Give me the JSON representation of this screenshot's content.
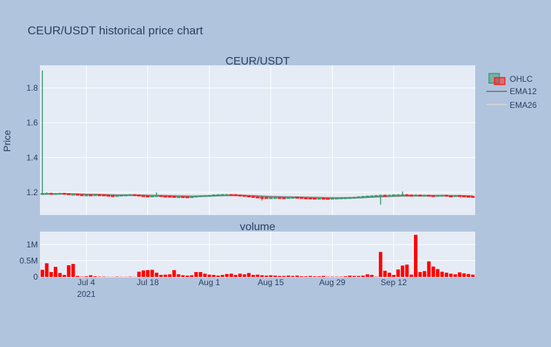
{
  "title": "CEUR/USDT historical price chart",
  "colors": {
    "background": "#b0c4de",
    "plot_bg": "#e5ecf6",
    "increasing": "#3d9970",
    "decreasing": "#ff1a1a",
    "ema12": "#808080",
    "ema26": "#d3d3d3",
    "volume": "#ff0000",
    "text": "#2a3f5f"
  },
  "chart_data": [
    {
      "type": "candlestick",
      "title": "CEUR/USDT",
      "ylabel": "Price",
      "ylim": [
        1.07,
        1.93
      ],
      "y_ticks": [
        1.2,
        1.4,
        1.6,
        1.8
      ],
      "y_tick_labels": [
        "1.2",
        "1.4",
        "1.6",
        "1.8"
      ],
      "x_start": "2021-06-24",
      "x_ticks": [
        "2021-07-04",
        "2021-07-18",
        "2021-08-01",
        "2021-08-15",
        "2021-08-29",
        "2021-09-12"
      ],
      "x_tick_labels": [
        "Jul 4\n2021",
        "Jul 18",
        "Aug 1",
        "Aug 15",
        "Aug 29",
        "Sep 12"
      ],
      "grid": true,
      "legend": {
        "position": "right",
        "entries": [
          "OHLC",
          "EMA12",
          "EMA26"
        ]
      },
      "series": [
        {
          "name": "OHLC",
          "kind": "ohlc",
          "close": [
            1.195,
            1.195,
            1.193,
            1.194,
            1.195,
            1.193,
            1.19,
            1.19,
            1.187,
            1.186,
            1.186,
            1.185,
            1.187,
            1.186,
            1.184,
            1.182,
            1.18,
            1.183,
            1.185,
            1.186,
            1.187,
            1.185,
            1.182,
            1.18,
            1.179,
            1.18,
            1.182,
            1.179,
            1.178,
            1.177,
            1.176,
            1.176,
            1.175,
            1.174,
            1.176,
            1.179,
            1.181,
            1.182,
            1.183,
            1.186,
            1.187,
            1.188,
            1.188,
            1.187,
            1.185,
            1.183,
            1.18,
            1.177,
            1.174,
            1.172,
            1.171,
            1.17,
            1.17,
            1.171,
            1.17,
            1.169,
            1.171,
            1.172,
            1.171,
            1.169,
            1.168,
            1.167,
            1.166,
            1.167,
            1.166,
            1.165,
            1.167,
            1.168,
            1.169,
            1.17,
            1.171,
            1.172,
            1.175,
            1.177,
            1.179,
            1.18,
            1.182,
            1.184,
            1.183,
            1.184,
            1.186,
            1.186,
            1.187,
            1.185,
            1.184,
            1.185,
            1.183,
            1.184,
            1.182,
            1.181,
            1.183,
            1.184,
            1.18,
            1.178,
            1.182,
            1.18,
            1.178,
            1.177,
            1.175
          ],
          "open": [
            1.19,
            1.195,
            1.195,
            1.193,
            1.194,
            1.195,
            1.193,
            1.19,
            1.19,
            1.187,
            1.186,
            1.186,
            1.185,
            1.187,
            1.186,
            1.184,
            1.182,
            1.18,
            1.183,
            1.185,
            1.186,
            1.187,
            1.185,
            1.182,
            1.18,
            1.179,
            1.18,
            1.182,
            1.179,
            1.178,
            1.177,
            1.176,
            1.176,
            1.175,
            1.174,
            1.176,
            1.179,
            1.181,
            1.182,
            1.183,
            1.186,
            1.187,
            1.188,
            1.188,
            1.187,
            1.185,
            1.183,
            1.18,
            1.177,
            1.174,
            1.172,
            1.171,
            1.17,
            1.17,
            1.171,
            1.17,
            1.169,
            1.171,
            1.172,
            1.171,
            1.169,
            1.168,
            1.167,
            1.166,
            1.167,
            1.166,
            1.165,
            1.167,
            1.168,
            1.169,
            1.17,
            1.171,
            1.172,
            1.175,
            1.177,
            1.179,
            1.18,
            1.182,
            1.184,
            1.183,
            1.184,
            1.186,
            1.186,
            1.187,
            1.185,
            1.184,
            1.185,
            1.183,
            1.184,
            1.182,
            1.181,
            1.183,
            1.184,
            1.18,
            1.178,
            1.182,
            1.18,
            1.178,
            1.177
          ],
          "high": [
            1.9,
            1.2,
            1.198,
            1.197,
            1.198,
            1.198,
            1.196,
            1.193,
            1.193,
            1.19,
            1.189,
            1.189,
            1.19,
            1.19,
            1.189,
            1.187,
            1.185,
            1.186,
            1.188,
            1.189,
            1.19,
            1.19,
            1.188,
            1.185,
            1.183,
            1.183,
            1.2,
            1.185,
            1.182,
            1.181,
            1.18,
            1.179,
            1.179,
            1.178,
            1.179,
            1.182,
            1.184,
            1.185,
            1.186,
            1.189,
            1.19,
            1.191,
            1.191,
            1.19,
            1.19,
            1.188,
            1.186,
            1.183,
            1.18,
            1.177,
            1.175,
            1.174,
            1.173,
            1.174,
            1.174,
            1.173,
            1.174,
            1.175,
            1.175,
            1.174,
            1.172,
            1.171,
            1.17,
            1.17,
            1.17,
            1.169,
            1.17,
            1.171,
            1.172,
            1.173,
            1.174,
            1.175,
            1.178,
            1.18,
            1.182,
            1.183,
            1.185,
            1.187,
            1.187,
            1.187,
            1.19,
            1.19,
            1.205,
            1.19,
            1.188,
            1.188,
            1.187,
            1.187,
            1.186,
            1.185,
            1.186,
            1.187,
            1.187,
            1.183,
            1.185,
            1.185,
            1.183,
            1.181,
            1.18
          ],
          "low": [
            1.185,
            1.19,
            1.19,
            1.19,
            1.191,
            1.19,
            1.188,
            1.187,
            1.185,
            1.183,
            1.183,
            1.182,
            1.182,
            1.183,
            1.181,
            1.179,
            1.177,
            1.177,
            1.18,
            1.182,
            1.183,
            1.182,
            1.179,
            1.177,
            1.176,
            1.176,
            1.177,
            1.176,
            1.175,
            1.174,
            1.173,
            1.173,
            1.172,
            1.171,
            1.171,
            1.173,
            1.176,
            1.178,
            1.179,
            1.18,
            1.183,
            1.184,
            1.185,
            1.184,
            1.182,
            1.18,
            1.177,
            1.174,
            1.171,
            1.169,
            1.155,
            1.167,
            1.167,
            1.167,
            1.167,
            1.166,
            1.166,
            1.168,
            1.168,
            1.166,
            1.165,
            1.164,
            1.163,
            1.163,
            1.163,
            1.162,
            1.162,
            1.164,
            1.165,
            1.166,
            1.167,
            1.168,
            1.169,
            1.172,
            1.174,
            1.176,
            1.177,
            1.13,
            1.18,
            1.18,
            1.181,
            1.183,
            1.183,
            1.182,
            1.181,
            1.181,
            1.18,
            1.18,
            1.179,
            1.178,
            1.178,
            1.18,
            1.177,
            1.175,
            1.175,
            1.177,
            1.175,
            1.174,
            1.172
          ]
        },
        {
          "name": "EMA12",
          "kind": "line",
          "values": [
            1.19,
            1.1908,
            1.1914,
            1.1917,
            1.1922,
            1.1923,
            1.1919,
            1.1915,
            1.1906,
            1.1897,
            1.1889,
            1.1881,
            1.1878,
            1.1874,
            1.1867,
            1.1857,
            1.1848,
            1.1843,
            1.1842,
            1.1843,
            1.1845,
            1.1844,
            1.1839,
            1.1832,
            1.1825,
            1.1821,
            1.1821,
            1.1816,
            1.181,
            1.1804,
            1.1797,
            1.1792,
            1.1786,
            1.1779,
            1.1776,
            1.1779,
            1.1783,
            1.1788,
            1.1793,
            1.1802,
            1.1811,
            1.1819,
            1.1826,
            1.1831,
            1.1833,
            1.1831,
            1.1826,
            1.1817,
            1.1805,
            1.1792,
            1.1779,
            1.1767,
            1.1757,
            1.175,
            1.1742,
            1.1734,
            1.173,
            1.1728,
            1.1725,
            1.1719,
            1.1713,
            1.1706,
            1.1699,
            1.1694,
            1.1689,
            1.1682,
            1.1679,
            1.1678,
            1.1679,
            1.1681,
            1.1684,
            1.1688,
            1.1697,
            1.1708,
            1.1721,
            1.1733,
            1.1746,
            1.1759,
            1.1768,
            1.1778,
            1.1789,
            1.1797,
            1.1806,
            1.1808,
            1.1811,
            1.1816,
            1.1817,
            1.1821,
            1.1819,
            1.1818,
            1.182,
            1.1823,
            1.1819,
            1.1813,
            1.1815,
            1.1813,
            1.1807,
            1.1802,
            1.1794
          ]
        },
        {
          "name": "EMA26",
          "kind": "line",
          "values": [
            1.19,
            1.1904,
            1.1907,
            1.191,
            1.1913,
            1.1916,
            1.1916,
            1.1915,
            1.1912,
            1.1908,
            1.1904,
            1.1899,
            1.1896,
            1.1893,
            1.1889,
            1.1883,
            1.1877,
            1.1874,
            1.1872,
            1.1871,
            1.1871,
            1.1869,
            1.1866,
            1.1861,
            1.1856,
            1.1852,
            1.185,
            1.1846,
            1.1842,
            1.1838,
            1.1834,
            1.183,
            1.1826,
            1.1822,
            1.1818,
            1.1817,
            1.1816,
            1.1817,
            1.1817,
            1.1819,
            1.1822,
            1.1825,
            1.1829,
            1.1832,
            1.1833,
            1.1832,
            1.1829,
            1.1824,
            1.1819,
            1.1812,
            1.1805,
            1.1797,
            1.179,
            1.1786,
            1.1779,
            1.1773,
            1.1769,
            1.1766,
            1.1762,
            1.1757,
            1.1751,
            1.1746,
            1.1741,
            1.1737,
            1.1733,
            1.1728,
            1.1726,
            1.1724,
            1.1722,
            1.1721,
            1.1721,
            1.1721,
            1.1724,
            1.1727,
            1.1731,
            1.1736,
            1.1741,
            1.1747,
            1.1751,
            1.1756,
            1.1763,
            1.1767,
            1.1774,
            1.1776,
            1.178,
            1.1784,
            1.1786,
            1.179,
            1.1792,
            1.1794,
            1.1796,
            1.18,
            1.18,
            1.1799,
            1.1801,
            1.1801,
            1.18,
            1.1798,
            1.1796
          ]
        }
      ]
    },
    {
      "type": "bar",
      "title": "volume",
      "ylim": [
        0,
        1400000
      ],
      "y_ticks": [
        0,
        500000,
        1000000
      ],
      "y_tick_labels": [
        "0",
        "0.5M",
        "1M"
      ],
      "grid": true,
      "series": [
        {
          "name": "volume",
          "values": [
            220000,
            420000,
            150000,
            310000,
            120000,
            60000,
            360000,
            400000,
            30000,
            10000,
            20000,
            50000,
            20000,
            10000,
            10000,
            5000,
            5000,
            10000,
            5000,
            5000,
            10000,
            5000,
            160000,
            200000,
            210000,
            220000,
            130000,
            60000,
            70000,
            80000,
            210000,
            80000,
            50000,
            40000,
            50000,
            150000,
            150000,
            100000,
            70000,
            60000,
            40000,
            60000,
            90000,
            100000,
            60000,
            100000,
            80000,
            120000,
            60000,
            70000,
            50000,
            40000,
            50000,
            40000,
            30000,
            30000,
            40000,
            30000,
            40000,
            20000,
            20000,
            30000,
            20000,
            20000,
            30000,
            10000,
            10000,
            10000,
            10000,
            20000,
            40000,
            30000,
            30000,
            40000,
            80000,
            60000,
            10000,
            770000,
            190000,
            130000,
            60000,
            230000,
            350000,
            380000,
            70000,
            1300000,
            150000,
            180000,
            480000,
            320000,
            240000,
            160000,
            130000,
            100000,
            80000,
            140000,
            110000,
            90000,
            70000
          ]
        }
      ]
    }
  ]
}
